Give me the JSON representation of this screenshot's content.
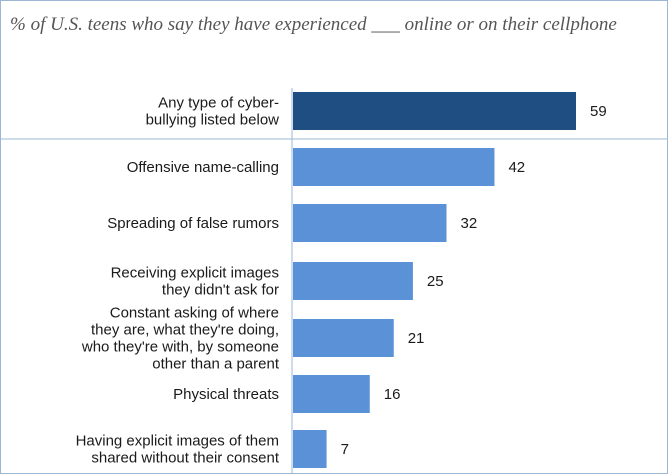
{
  "chart_data": {
    "type": "bar",
    "orientation": "horizontal",
    "title": "% of U.S. teens who say they have experienced ___ online or on their cellphone",
    "categories": [
      [
        "Any type of cyber-",
        "bullying listed below"
      ],
      [
        "Offensive name-calling"
      ],
      [
        "Spreading of false rumors"
      ],
      [
        "Receiving explicit images",
        "they didn't ask for"
      ],
      [
        "Constant asking of where",
        "they are, what they're doing,",
        "who they're with, by someone",
        "other than a parent"
      ],
      [
        "Physical threats"
      ],
      [
        "Having explicit images of them",
        "shared without their consent"
      ]
    ],
    "values": [
      59,
      42,
      32,
      25,
      21,
      16,
      7
    ],
    "colors": [
      "#1f4e82",
      "#5b91d6",
      "#5b91d6",
      "#5b91d6",
      "#5b91d6",
      "#5b91d6",
      "#5b91d6"
    ],
    "separator_color": "#9bb7d4",
    "xlim": [
      0,
      100
    ],
    "grid": false,
    "legend": "none"
  }
}
